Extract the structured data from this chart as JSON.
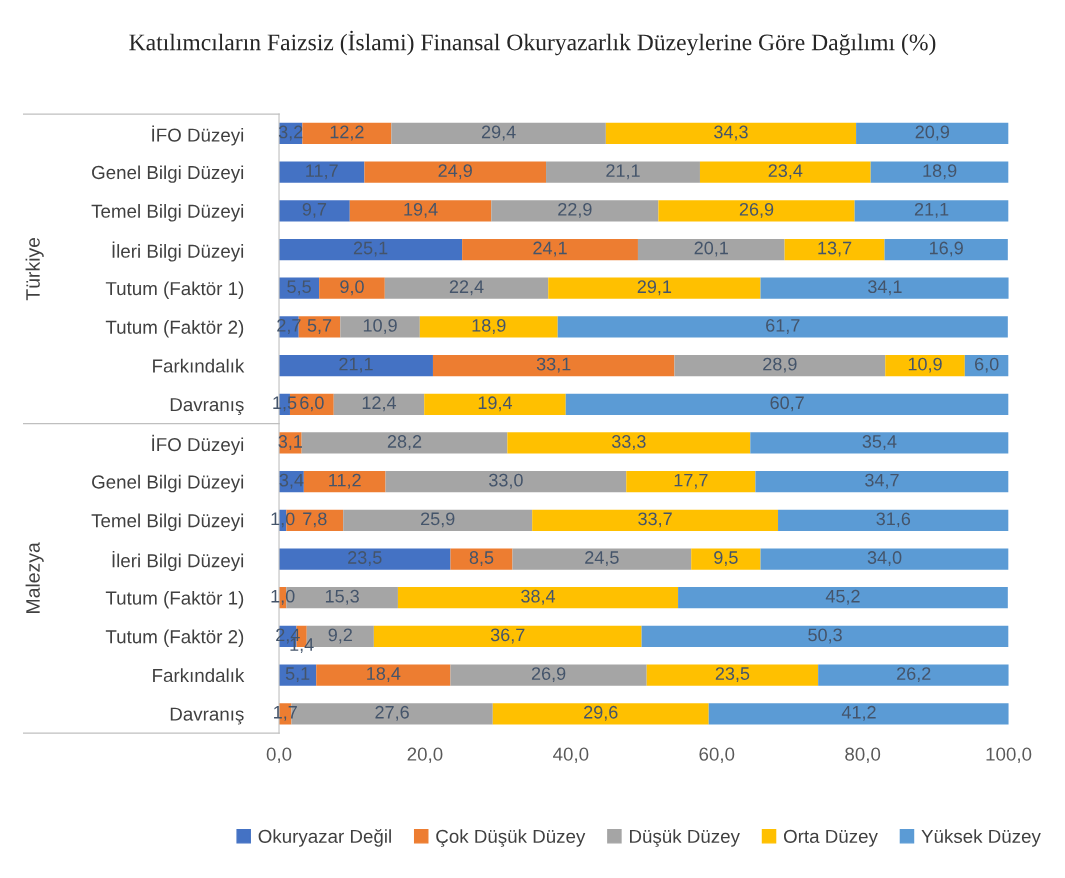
{
  "chart_data": {
    "type": "bar",
    "orientation": "horizontal",
    "stacked": true,
    "title": "Katılımcıların Faizsiz (İslami) Finansal Okuryazarlık Düzeylerine Göre Dağılımı (%)",
    "categories": [
      "İFO Düzeyi",
      "Genel Bilgi Düzeyi",
      "Temel Bilgi Düzeyi",
      "İleri Bilgi Düzeyi",
      "Tutum (Faktör 1)",
      "Tutum (Faktör 2)",
      "Farkındalık",
      "Davranış",
      "İFO Düzeyi",
      "Genel Bilgi Düzeyi",
      "Temel Bilgi Düzeyi",
      "İleri Bilgi Düzeyi",
      "Tutum (Faktör 1)",
      "Tutum (Faktör 2)",
      "Farkındalık",
      "Davranış"
    ],
    "annotations": [
      "Türkiye",
      "Malezya"
    ],
    "series": [
      {
        "name": "Okuryazar Değil",
        "color": "#4472c4",
        "values": [
          3.2,
          11.7,
          9.7,
          25.1,
          5.5,
          2.7,
          21.1,
          1.5,
          null,
          3.4,
          1.0,
          23.5,
          null,
          2.4,
          5.1,
          null
        ],
        "value_labels": [
          "3,2",
          "11,7",
          "9,7",
          "25,1",
          "5,5",
          "2,7",
          "21,1",
          "1,5",
          null,
          "3,4",
          "1,0",
          "23,5",
          null,
          "2,4",
          "5,1",
          null
        ]
      },
      {
        "name": "Çok Düşük Düzey",
        "color": "#ed7d31",
        "values": [
          12.2,
          24.9,
          19.4,
          24.1,
          9.0,
          5.7,
          33.1,
          6.0,
          3.1,
          11.2,
          7.8,
          8.5,
          1.0,
          1.4,
          18.4,
          1.7
        ],
        "value_labels": [
          "12,2",
          "24,9",
          "19,4",
          "24,1",
          "9,0",
          "5,7",
          "33,1",
          "6,0",
          "3,1",
          "11,2",
          "7,8",
          "8,5",
          "1,0",
          "1,4",
          "18,4",
          "1,7"
        ]
      },
      {
        "name": "Düşük Düzey",
        "color": "#a5a5a5",
        "values": [
          29.4,
          21.1,
          22.9,
          20.1,
          22.4,
          10.9,
          28.9,
          12.4,
          28.2,
          33.0,
          25.9,
          24.5,
          15.3,
          9.2,
          26.9,
          27.6
        ],
        "value_labels": [
          "29,4",
          "21,1",
          "22,9",
          "20,1",
          "22,4",
          "10,9",
          "28,9",
          "12,4",
          "28,2",
          "33,0",
          "25,9",
          "24,5",
          "15,3",
          "9,2",
          "26,9",
          "27,6"
        ]
      },
      {
        "name": "Orta Düzey",
        "color": "#ffc000",
        "values": [
          34.3,
          23.4,
          26.9,
          13.7,
          29.1,
          18.9,
          10.9,
          19.4,
          33.3,
          17.7,
          33.7,
          9.5,
          38.4,
          36.7,
          23.5,
          29.6
        ],
        "value_labels": [
          "34,3",
          "23,4",
          "26,9",
          "13,7",
          "29,1",
          "18,9",
          "10,9",
          "19,4",
          "33,3",
          "17,7",
          "33,7",
          "9,5",
          "38,4",
          "36,7",
          "23,5",
          "29,6"
        ]
      },
      {
        "name": "Yüksek Düzey",
        "color": "#5b9bd5",
        "values": [
          20.9,
          18.9,
          21.1,
          16.9,
          34.1,
          61.7,
          6.0,
          60.7,
          35.4,
          34.7,
          31.6,
          34.0,
          45.2,
          50.3,
          26.2,
          41.2
        ],
        "value_labels": [
          "20,9",
          "18,9",
          "21,1",
          "16,9",
          "34,1",
          "61,7",
          "6,0",
          "60,7",
          "35,4",
          "34,7",
          "31,6",
          "34,0",
          "45,2",
          "50,3",
          "26,2",
          "41,2"
        ]
      }
    ],
    "xlim": [
      0,
      100
    ],
    "xticks": [
      {
        "value": 0,
        "label": "0,0"
      },
      {
        "value": 20,
        "label": "20,0"
      },
      {
        "value": 40,
        "label": "40,0"
      },
      {
        "value": 60,
        "label": "60,0"
      },
      {
        "value": 80,
        "label": "80,0"
      },
      {
        "value": 100,
        "label": "100,0"
      }
    ],
    "grid": false,
    "legend": "bottom"
  }
}
